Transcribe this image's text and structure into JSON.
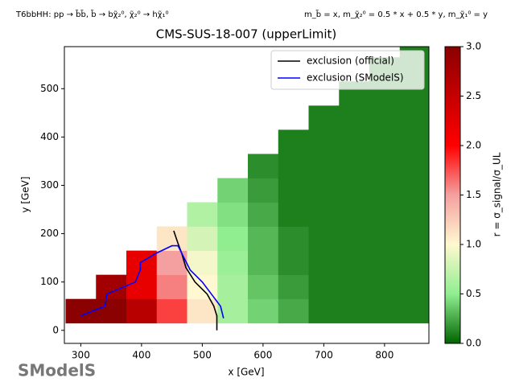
{
  "chart_data": {
    "type": "heatmap",
    "title": "CMS-SUS-18-007 (upperLimit)",
    "subtitle_left": "T6bbHH: pp → b̃b̃, b̃ → bχ̃₂⁰, χ̃₂⁰ → hχ̃₁⁰",
    "subtitle_right": "m_b̃ = x, m_χ̃₂⁰ = 0.5 * x + 0.5 * y, m_χ̃₁⁰ = y",
    "xlabel": "x [GeV]",
    "ylabel": "y [GeV]",
    "colorbar_label": "r = σ_signal/σ_UL",
    "xlim": [
      273,
      873
    ],
    "ylim": [
      -27,
      587
    ],
    "xticks": [
      300,
      400,
      500,
      600,
      700,
      800
    ],
    "yticks": [
      0,
      100,
      200,
      300,
      400,
      500
    ],
    "clim": [
      0,
      3
    ],
    "cticks": [
      {
        "value": 0,
        "label": "0.0"
      },
      0.5,
      {
        "value": 1,
        "label": "1.0"
      },
      1.5,
      {
        "value": 2,
        "label": "2.0"
      },
      2.5,
      {
        "value": 3,
        "label": "3.0"
      }
    ],
    "colormap": [
      [
        0,
        "#006400"
      ],
      [
        0.5,
        "#90ee90"
      ],
      [
        1.0,
        "#fff8d0"
      ],
      [
        1.5,
        "#f4a0a0"
      ],
      [
        2.0,
        "#ff0000"
      ],
      [
        3.0,
        "#8b0000"
      ]
    ],
    "x_edges": [
      275,
      325,
      375,
      425,
      475,
      525,
      575,
      625,
      675,
      725,
      775,
      825,
      875
    ],
    "y_edges": [
      15,
      65,
      115,
      165,
      215,
      265,
      315,
      365,
      415,
      465,
      515,
      565,
      615
    ],
    "z": [
      [
        3,
        3,
        2.6,
        1.8,
        1.1,
        0.6,
        0.4,
        0.25,
        0.1,
        0.1,
        0.1,
        0.1
      ],
      [
        null,
        2.8,
        2.2,
        1.6,
        1.0,
        0.6,
        0.35,
        0.2,
        0.1,
        0.1,
        0.1,
        0.1
      ],
      [
        null,
        null,
        2.2,
        1.5,
        0.95,
        0.55,
        0.3,
        0.15,
        0.1,
        0.1,
        0.1,
        0.1
      ],
      [
        null,
        null,
        null,
        1.1,
        0.8,
        0.5,
        0.3,
        0.15,
        0.1,
        0.1,
        0.1,
        0.1
      ],
      [
        null,
        null,
        null,
        null,
        0.65,
        0.45,
        0.25,
        0.1,
        0.1,
        0.1,
        0.1,
        0.1
      ],
      [
        null,
        null,
        null,
        null,
        null,
        0.4,
        0.2,
        0.1,
        0.1,
        0.1,
        0.1,
        0.1
      ],
      [
        null,
        null,
        null,
        null,
        null,
        null,
        0.15,
        0.1,
        0.1,
        0.1,
        0.1,
        0.1
      ],
      [
        null,
        null,
        null,
        null,
        null,
        null,
        null,
        0.1,
        0.1,
        0.1,
        0.1,
        0.1
      ],
      [
        null,
        null,
        null,
        null,
        null,
        null,
        null,
        null,
        0.1,
        0.1,
        0.1,
        0.1
      ],
      [
        null,
        null,
        null,
        null,
        null,
        null,
        null,
        null,
        null,
        0.1,
        0.1,
        0.1
      ],
      [
        null,
        null,
        null,
        null,
        null,
        null,
        null,
        null,
        null,
        null,
        0.1,
        0.1
      ],
      [
        null,
        null,
        null,
        null,
        null,
        null,
        null,
        null,
        null,
        null,
        null,
        0.1
      ]
    ],
    "series": [
      {
        "name": "exclusion (official)",
        "color": "#000000",
        "x": [
          453,
          460,
          466,
          473,
          488,
          508,
          519,
          524,
          524
        ],
        "values": [
          206,
          180,
          160,
          130,
          100,
          75,
          50,
          30,
          0
        ]
      },
      {
        "name": "exclusion (SModelS)",
        "color": "#0000ff",
        "x": [
          300,
          340,
          343,
          390,
          398,
          398,
          425,
          450,
          460,
          470,
          480,
          500,
          515,
          530,
          535
        ],
        "values": [
          30,
          50,
          75,
          100,
          125,
          140,
          160,
          175,
          175,
          150,
          125,
          100,
          75,
          50,
          25
        ]
      }
    ],
    "legend": "upper right"
  },
  "logo_text": "SModelS"
}
